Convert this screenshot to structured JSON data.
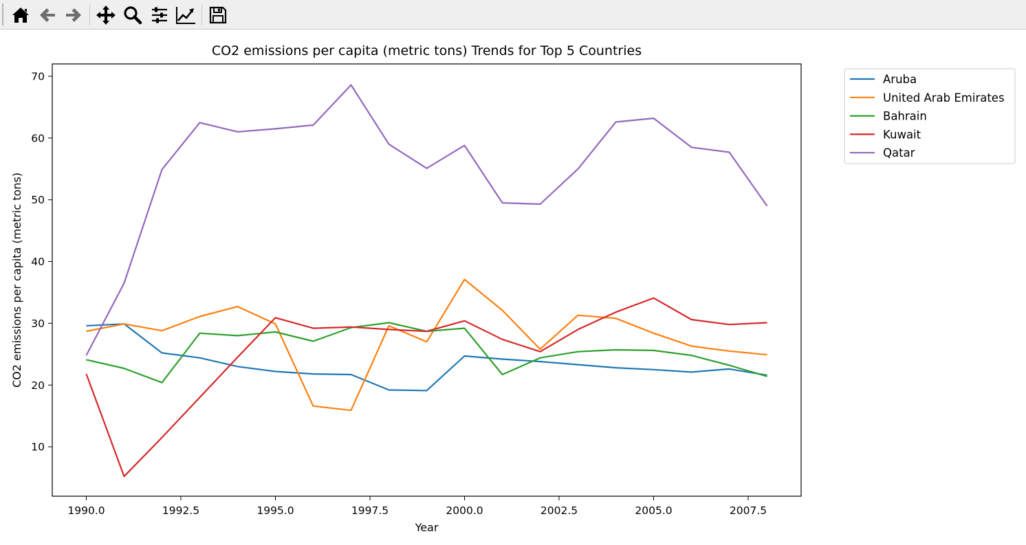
{
  "toolbar": {
    "buttons": [
      {
        "name": "home-icon",
        "label": "Home"
      },
      {
        "name": "back-icon",
        "label": "Back"
      },
      {
        "name": "forward-icon",
        "label": "Forward"
      },
      {
        "name": "pan-icon",
        "label": "Pan"
      },
      {
        "name": "zoom-icon",
        "label": "Zoom"
      },
      {
        "name": "configure-subplots-icon",
        "label": "Subplots"
      },
      {
        "name": "edit-axis-icon",
        "label": "Customize"
      },
      {
        "name": "save-icon",
        "label": "Save"
      }
    ]
  },
  "chart_data": {
    "type": "line",
    "title": "CO2 emissions per capita (metric tons) Trends for Top 5 Countries",
    "xlabel": "Year",
    "ylabel": "CO2 emissions per capita (metric tons)",
    "xlim": [
      1989.1,
      2008.9
    ],
    "ylim": [
      2.0,
      72.0
    ],
    "xticks": [
      "1990.0",
      "1992.5",
      "1995.0",
      "1997.5",
      "2000.0",
      "2002.5",
      "2005.0",
      "2007.5"
    ],
    "yticks": [
      "10",
      "20",
      "30",
      "40",
      "50",
      "60",
      "70"
    ],
    "grid": false,
    "legend_position": "outside top-right",
    "x": [
      1990,
      1991,
      1992,
      1993,
      1994,
      1995,
      1996,
      1997,
      1998,
      1999,
      2000,
      2001,
      2002,
      2003,
      2004,
      2005,
      2006,
      2007,
      2008
    ],
    "series": [
      {
        "name": "Aruba",
        "color": "#1f77b4",
        "values": [
          29.6,
          29.9,
          25.2,
          24.4,
          23.0,
          22.2,
          21.8,
          21.7,
          19.2,
          19.1,
          24.7,
          24.2,
          23.8,
          23.3,
          22.8,
          22.5,
          22.1,
          22.6,
          21.6
        ]
      },
      {
        "name": "United Arab Emirates",
        "color": "#ff7f0e",
        "values": [
          28.7,
          29.9,
          28.8,
          31.1,
          32.7,
          29.9,
          16.6,
          15.9,
          29.6,
          27.0,
          37.1,
          32.1,
          25.8,
          31.3,
          30.8,
          28.4,
          26.3,
          25.5,
          24.9
        ]
      },
      {
        "name": "Bahrain",
        "color": "#2ca02c",
        "values": [
          24.1,
          22.7,
          20.4,
          28.4,
          28.0,
          28.6,
          27.1,
          29.3,
          30.1,
          28.7,
          29.2,
          21.7,
          24.4,
          25.4,
          25.7,
          25.6,
          24.8,
          23.2,
          21.4
        ]
      },
      {
        "name": "Kuwait",
        "color": "#d62728",
        "values": [
          21.8,
          5.2,
          11.5,
          18.0,
          24.5,
          30.9,
          29.2,
          29.4,
          29.0,
          28.7,
          30.4,
          27.4,
          25.4,
          29.0,
          31.8,
          34.1,
          30.6,
          29.8,
          30.1
        ]
      },
      {
        "name": "Qatar",
        "color": "#9467bd",
        "values": [
          24.8,
          36.5,
          54.9,
          62.5,
          61.0,
          61.5,
          62.1,
          68.6,
          59.0,
          55.1,
          58.8,
          49.5,
          49.3,
          55.0,
          62.6,
          63.2,
          58.5,
          57.7,
          49.0
        ]
      }
    ]
  }
}
